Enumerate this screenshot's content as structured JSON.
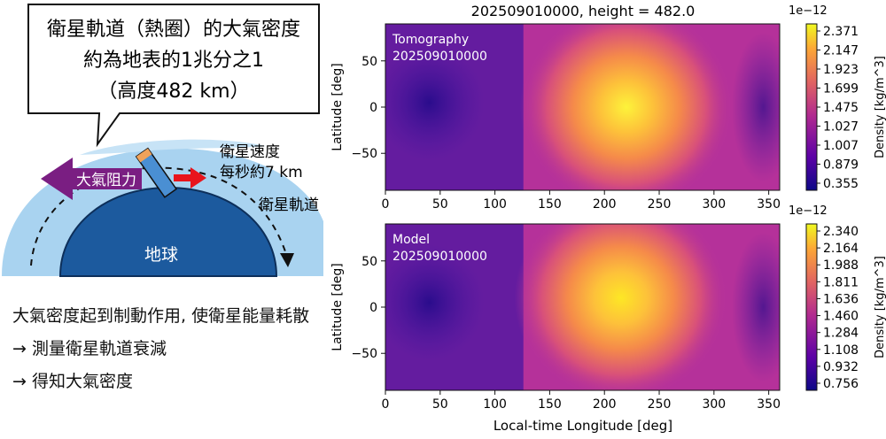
{
  "illustration": {
    "bubble_lines": [
      "衛星軌道（熱圈）的大氣密度",
      "約為地表的1兆分之1",
      "（高度482 km）"
    ],
    "drag_label": "大氣阻力",
    "speed_lines": [
      "衛星速度",
      "每秒約7 km"
    ],
    "orbit_label": "衛星軌道",
    "earth_label": "地球",
    "bullets": [
      "大氣密度起到制動作用, 使衛星能量耗散",
      "→ 測量衛星軌道衰減",
      "→ 得知大氣密度"
    ]
  },
  "figure": {
    "suptitle": "202509010000, height = 482.0",
    "xlabel": "Local-time Longitude [deg]"
  },
  "chart_data": [
    {
      "type": "heatmap",
      "label_lines": [
        "Tomography",
        "202509010000"
      ],
      "ylabel": "Latitude [deg]",
      "xlim": [
        0,
        360
      ],
      "ylim": [
        -90,
        90
      ],
      "xticks": [
        "0",
        "50",
        "100",
        "150",
        "200",
        "250",
        "300",
        "350"
      ],
      "yticks": [
        "50",
        "0",
        "−50"
      ],
      "peak": {
        "lon": 220,
        "lat": 0
      },
      "colorbar": {
        "label": "Density [kg/m^3]",
        "scale_label": "1e−12",
        "ticks": [
          "2.371",
          "2.147",
          "1.923",
          "1.699",
          "1.475",
          "1.027",
          "1.007",
          "0.879",
          "0.355"
        ]
      }
    },
    {
      "type": "heatmap",
      "label_lines": [
        "Model",
        "202509010000"
      ],
      "ylabel": "Latitude [deg]",
      "xlim": [
        0,
        360
      ],
      "ylim": [
        -90,
        90
      ],
      "xticks": [
        "0",
        "50",
        "100",
        "150",
        "200",
        "250",
        "300",
        "350"
      ],
      "yticks": [
        "50",
        "0",
        "−50"
      ],
      "peak": {
        "lon": 215,
        "lat": 10
      },
      "colorbar": {
        "label": "Density [kg/m^3]",
        "scale_label": "1e−12",
        "ticks": [
          "2.340",
          "2.164",
          "1.988",
          "1.811",
          "1.636",
          "1.460",
          "1.284",
          "1.108",
          "0.932",
          "0.756"
        ]
      }
    }
  ],
  "colors": {
    "map_low": "#2a0c8c",
    "map_mid": "#b5319a",
    "map_high": "#fde725",
    "atmosphere": "#a9d3f0",
    "earth": "#1c5a9e",
    "drag_arrow": "#7a1e82",
    "speed_arrow": "#e8141c"
  }
}
